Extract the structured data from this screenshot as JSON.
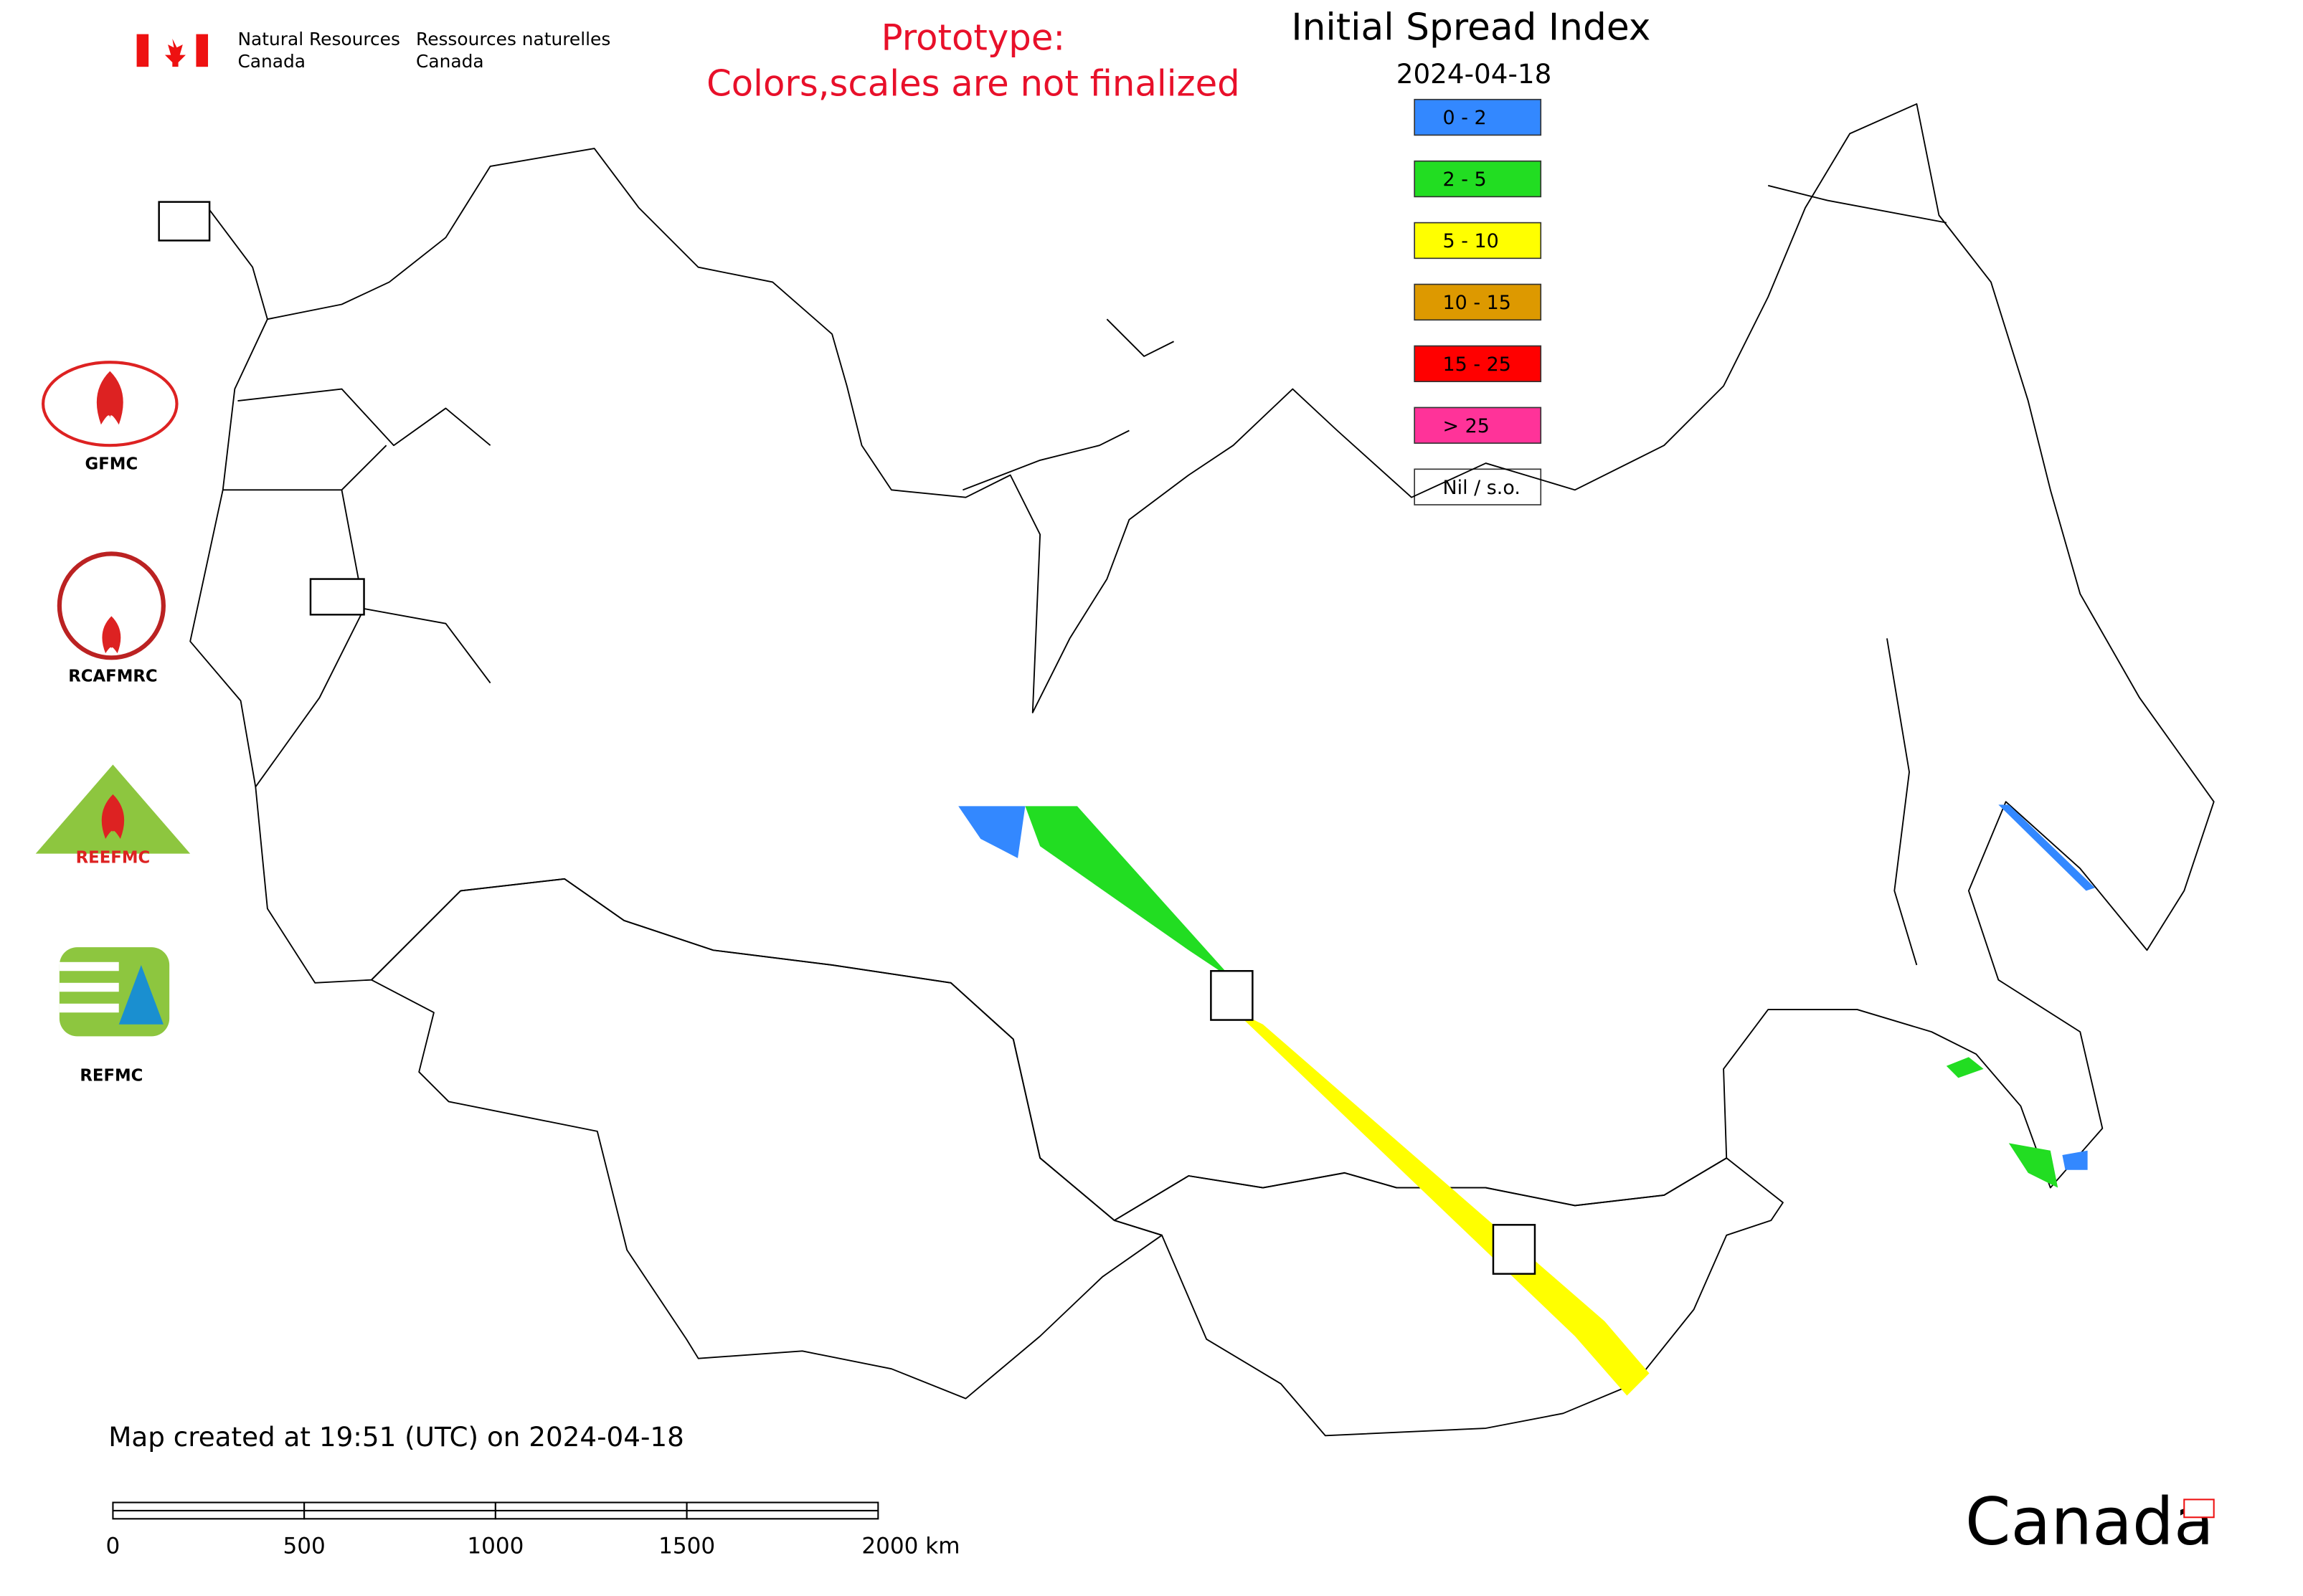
{
  "header": {
    "dept_en_1": "Natural Resources",
    "dept_en_2": "Canada",
    "dept_fr_1": "Ressources naturelles",
    "dept_fr_2": "Canada"
  },
  "notice": [
    "Prototype:",
    "Colors,scales are not finalized"
  ],
  "title": "Initial Spread Index",
  "date": "2024-04-18",
  "legend": [
    {
      "label": "0 - 2",
      "color": "#3388ff"
    },
    {
      "label": "2 - 5",
      "color": "#22dd22"
    },
    {
      "label": "5 - 10",
      "color": "#ffff00"
    },
    {
      "label": "10 - 15",
      "color": "#dd9900"
    },
    {
      "label": "15 - 25",
      "color": "#ff0000"
    },
    {
      "label": "> 25",
      "color": "#ff3399"
    },
    {
      "label": "Nil / s.o.",
      "color": "#ffffff"
    }
  ],
  "logos": [
    "GFMC",
    "RCAFMRC",
    "REEFMC",
    "REFMC"
  ],
  "footer": "Map created at 19:51 (UTC) on 2024-04-18",
  "scale_bar": [
    "0",
    "500",
    "1000",
    "1500",
    "2000 km"
  ],
  "wordmark": "Canada"
}
